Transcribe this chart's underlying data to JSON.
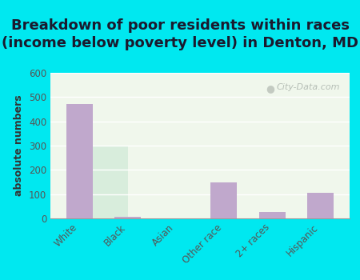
{
  "title": "Breakdown of poor residents within races\n(income below poverty level) in Denton, MD",
  "categories": [
    "White",
    "Black",
    "Asian",
    "Other race",
    "2+ races",
    "Hispanic"
  ],
  "values": [
    470,
    8,
    0,
    148,
    28,
    105
  ],
  "bar_color": "#c0a8cc",
  "ylabel": "absolute numbers",
  "ylim": [
    0,
    600
  ],
  "yticks": [
    0,
    100,
    200,
    300,
    400,
    500,
    600
  ],
  "background_color": "#00e8f0",
  "plot_bg_top": "#f0f7ec",
  "plot_bg_bottom": "#d8eddc",
  "watermark": "City-Data.com",
  "title_fontsize": 13,
  "axis_fontsize": 9,
  "tick_fontsize": 8.5,
  "title_color": "#1a1a2e"
}
